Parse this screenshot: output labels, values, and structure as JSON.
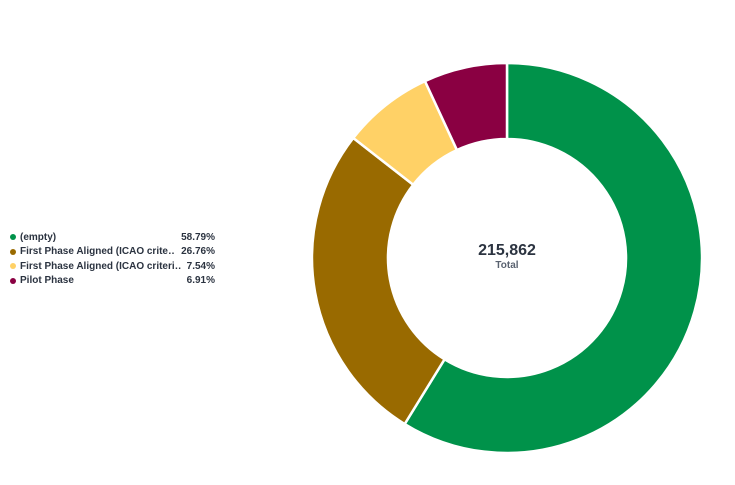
{
  "chart_data": {
    "type": "pie",
    "donut": true,
    "legend_position": "left",
    "categories": [
      "(empty)",
      "First Phase Aligned (ICAO crite…",
      "First Phase Aligned (ICAO criteri…",
      "Pilot Phase"
    ],
    "values": [
      58.79,
      26.76,
      7.54,
      6.91
    ],
    "value_labels": [
      "58.79%",
      "26.76%",
      "7.54%",
      "6.91%"
    ],
    "colors": [
      "#00924a",
      "#996a00",
      "#ffd166",
      "#8a0042"
    ],
    "center_value": "215,862",
    "center_label": "Total"
  }
}
